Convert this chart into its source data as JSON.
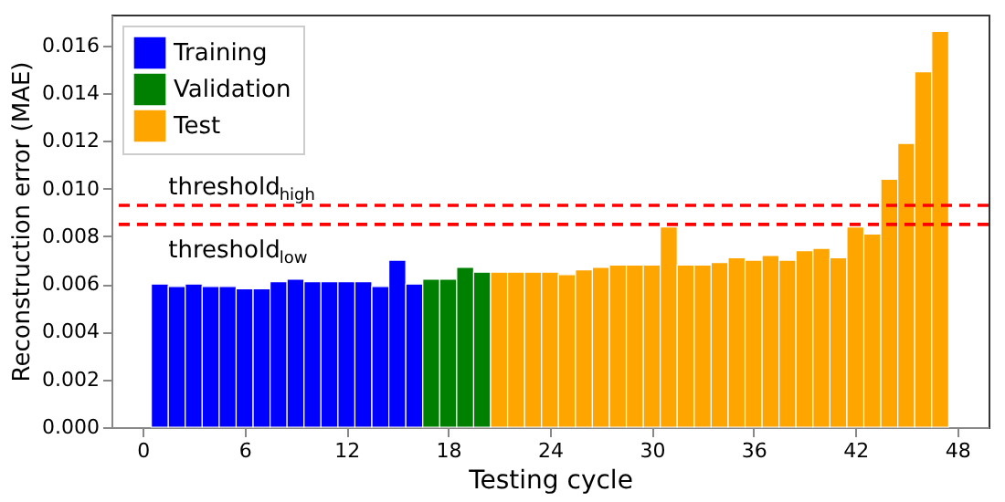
{
  "chart_data": {
    "type": "bar",
    "xlabel": "Testing cycle",
    "ylabel": "Reconstruction error (MAE)",
    "xlim": [
      -1.85,
      49.85
    ],
    "xticks": [
      0,
      6,
      12,
      18,
      24,
      30,
      36,
      42,
      48
    ],
    "ylim": [
      0,
      0.0173
    ],
    "yticks": [
      {
        "value": 0,
        "label": "0.000"
      },
      0.002,
      0.004,
      0.006,
      0.008,
      {
        "value": 0.01,
        "label": "0.010"
      },
      0.012,
      0.014,
      0.016
    ],
    "series": [
      {
        "name": "Training",
        "color": "#0000ff",
        "x": [
          1,
          2,
          3,
          4,
          5,
          6,
          7,
          8,
          9,
          10,
          11,
          12,
          13,
          14,
          15,
          16
        ],
        "values": [
          0.006,
          0.0059,
          0.006,
          0.0059,
          0.0059,
          0.0058,
          0.0058,
          0.0061,
          0.0062,
          0.0061,
          0.0061,
          0.0061,
          0.0061,
          0.0059,
          0.007,
          0.006
        ]
      },
      {
        "name": "Validation",
        "color": "#008000",
        "x": [
          17,
          18,
          19,
          20
        ],
        "values": [
          0.0062,
          0.0062,
          0.0067,
          0.0065
        ]
      },
      {
        "name": "Test",
        "color": "#ffa500",
        "x": [
          21,
          22,
          23,
          24,
          25,
          26,
          27,
          28,
          29,
          30,
          31,
          32,
          33,
          34,
          35,
          36,
          37,
          38,
          39,
          40,
          41,
          42,
          43,
          44,
          45,
          46,
          47
        ],
        "values": [
          0.0065,
          0.0065,
          0.0065,
          0.0065,
          0.0064,
          0.0066,
          0.0067,
          0.0068,
          0.0068,
          0.0068,
          0.0084,
          0.0068,
          0.0068,
          0.0069,
          0.0071,
          0.007,
          0.0072,
          0.007,
          0.0074,
          0.0075,
          0.0071,
          0.0084,
          0.0081,
          0.0104,
          0.0119,
          0.0149,
          0.0166
        ]
      }
    ],
    "ref_lines": [
      {
        "axis": "y",
        "value": 0.0093,
        "label": "threshold$_{high}$",
        "color": "#ff0000",
        "line_style": "dashed"
      },
      {
        "axis": "y",
        "value": 0.0085,
        "label": "threshold$_{low}$",
        "color": "#ff0000",
        "line_style": "dashed"
      }
    ],
    "legend": "top left",
    "grid": false
  }
}
